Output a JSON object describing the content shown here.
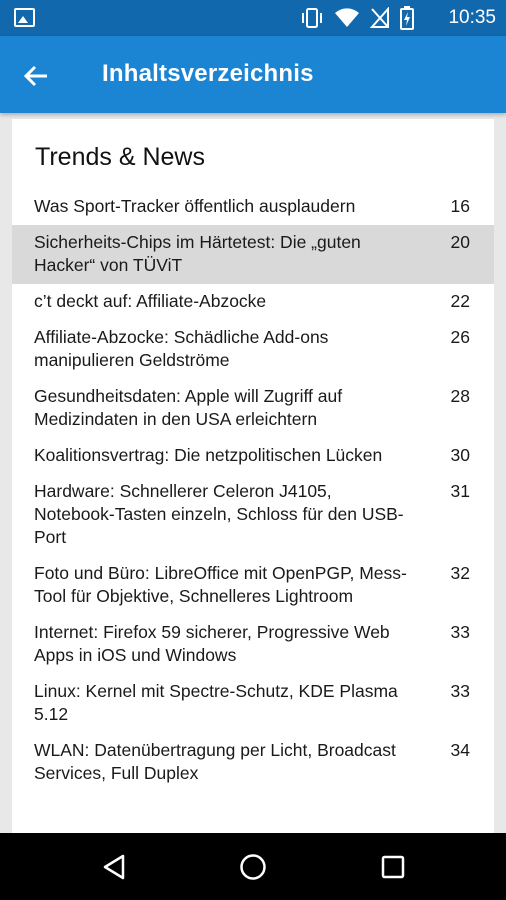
{
  "status_bar": {
    "time": "10:35",
    "icons": [
      "image-icon",
      "vibrate-icon",
      "wifi-icon",
      "no-sim-icon",
      "battery-charging-icon"
    ]
  },
  "app_bar": {
    "title": "Inhaltsverzeichnis",
    "back_icon": "arrow-left-icon"
  },
  "toc": {
    "section_title": "Trends & News",
    "items": [
      {
        "title": "Was Sport-Tracker öffentlich ausplaudern",
        "page": "16"
      },
      {
        "title": "Sicherheits-Chips im Härtetest: Die „guten Hacker“ von TÜViT",
        "page": "20"
      },
      {
        "title": "c’t deckt auf: Affiliate-Abzocke",
        "page": "22"
      },
      {
        "title": "Affiliate-Abzocke: Schädliche Add-ons manipulieren Geldströme",
        "page": "26"
      },
      {
        "title": "Gesundheitsdaten: Apple will Zugriff auf Medizindaten in den USA erleichtern",
        "page": "28"
      },
      {
        "title": "Koalitionsvertrag: Die netzpolitischen Lücken",
        "page": "30"
      },
      {
        "title": "Hardware: Schnellerer Celeron J4105, Notebook-Tasten einzeln, Schloss für den USB-Port",
        "page": "31"
      },
      {
        "title": "Foto und Büro: LibreOffice mit OpenPGP, Mess-Tool für Objektive, Schnelleres Lightroom",
        "page": "32"
      },
      {
        "title": "Internet: Firefox 59 sicherer, Progressive Web Apps in iOS und Windows",
        "page": "33"
      },
      {
        "title": "Linux: Kernel mit Spectre-Schutz, KDE Plasma 5.12",
        "page": "33"
      },
      {
        "title": "WLAN: Datenübertragung per Licht, Broadcast Services, Full Duplex",
        "page": "34"
      }
    ]
  },
  "nav_bar": {
    "buttons": [
      "back-triangle-icon",
      "home-circle-icon",
      "recents-square-icon"
    ]
  }
}
